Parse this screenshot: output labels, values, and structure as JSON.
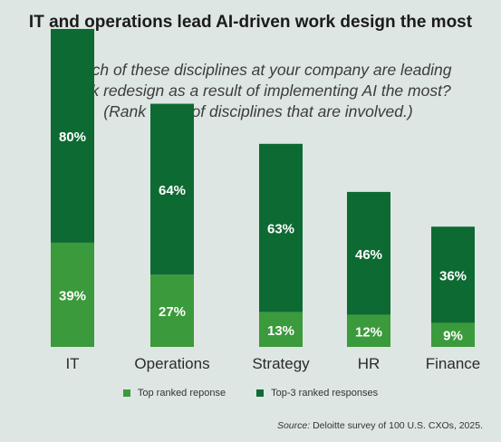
{
  "title": "IT and operations lead AI-driven work design the most",
  "subtitle_lines": [
    "Which of these disciplines at your company are leading",
    "work redesign as a result of implementing AI the most?",
    "(Rank order of disciplines that are involved.)"
  ],
  "chart_data": {
    "type": "bar",
    "stacked": true,
    "categories": [
      "IT",
      "Operations",
      "Strategy",
      "HR",
      "Finance"
    ],
    "series": [
      {
        "name": "Top ranked reponse",
        "values": [
          39,
          27,
          13,
          12,
          9
        ],
        "labels": [
          "39%",
          "27%",
          "13%",
          "12%",
          "9%"
        ]
      },
      {
        "name": "Top-3 ranked responses",
        "values": [
          80,
          64,
          63,
          46,
          36
        ],
        "labels": [
          "80%",
          "64%",
          "63%",
          "46%",
          "36%"
        ]
      }
    ],
    "unit": "%",
    "grid": false,
    "legend_position": "bottom"
  },
  "legend": [
    {
      "label": "Top ranked reponse",
      "color": "#3b9a3b"
    },
    {
      "label": "Top-3 ranked responses",
      "color": "#0d6a32"
    }
  ],
  "source": {
    "prefix": "Source:",
    "text": "Deloitte survey of 100 U.S. CXOs, 2025."
  }
}
